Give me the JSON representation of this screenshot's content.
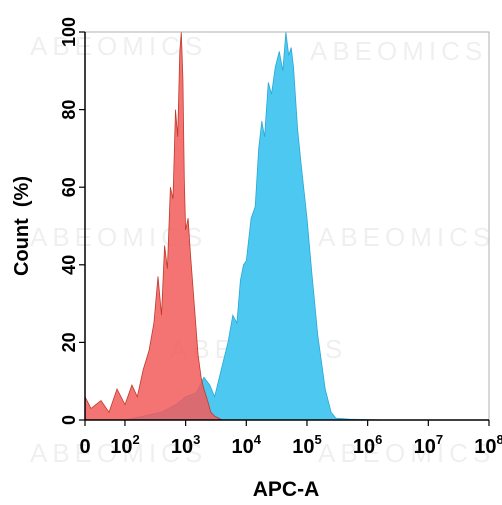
{
  "chart_data": {
    "type": "area",
    "title": "",
    "xlabel": "APC-A",
    "ylabel": "Count  (%)",
    "x_scale": "biexponential",
    "xlim": [
      0,
      100000000
    ],
    "ylim": [
      0,
      100
    ],
    "grid": false,
    "legend": "none",
    "x_ticks": [
      {
        "value": 0,
        "base": "0",
        "exp": ""
      },
      {
        "value": 100,
        "base": "10",
        "exp": "2"
      },
      {
        "value": 1000,
        "base": "10",
        "exp": "3"
      },
      {
        "value": 10000,
        "base": "10",
        "exp": "4"
      },
      {
        "value": 100000,
        "base": "10",
        "exp": "5"
      },
      {
        "value": 1000000,
        "base": "10",
        "exp": "6"
      },
      {
        "value": 10000000,
        "base": "10",
        "exp": "7"
      },
      {
        "value": 100000000,
        "base": "10",
        "exp": "8"
      }
    ],
    "y_ticks": [
      0,
      20,
      40,
      60,
      80,
      100
    ],
    "watermark": "ABEOMICS",
    "series": [
      {
        "color": "#f25a5a",
        "x": [
          0,
          15,
          40,
          60,
          80,
          100,
          130,
          160,
          200,
          250,
          300,
          350,
          400,
          450,
          500,
          560,
          620,
          680,
          740,
          800,
          850,
          900,
          950,
          1000,
          1100,
          1200,
          1400,
          1600,
          1800,
          2000,
          2300,
          2600,
          3000,
          3500,
          4000
        ],
        "y": [
          6,
          3,
          5,
          2,
          8,
          4,
          9,
          6,
          13,
          18,
          25,
          37,
          27,
          45,
          39,
          60,
          57,
          80,
          73,
          95,
          100,
          88,
          62,
          49,
          52,
          43,
          29,
          17,
          11,
          8,
          5,
          2,
          1,
          0.5,
          0
        ]
      },
      {
        "color": "#4dc8f0",
        "x": [
          100,
          200,
          400,
          700,
          1000,
          1500,
          2000,
          2500,
          3000,
          4000,
          5000,
          6000,
          7000,
          8000,
          9000,
          10000,
          12000,
          14000,
          16000,
          18000,
          20000,
          23000,
          26000,
          30000,
          35000,
          40000,
          45000,
          50000,
          55000,
          60000,
          70000,
          80000,
          100000,
          120000,
          150000,
          200000,
          250000,
          300000,
          500000,
          1000000,
          2000000
        ],
        "y": [
          0,
          1,
          2,
          4,
          6,
          7,
          11,
          9,
          6,
          14,
          20,
          27,
          25,
          36,
          40,
          41,
          52,
          55,
          70,
          77,
          73,
          87,
          84,
          91,
          95,
          90,
          100,
          94,
          96,
          91,
          75,
          66,
          52,
          38,
          22,
          8,
          2,
          0.5,
          0.2,
          0.1,
          0
        ]
      }
    ]
  }
}
